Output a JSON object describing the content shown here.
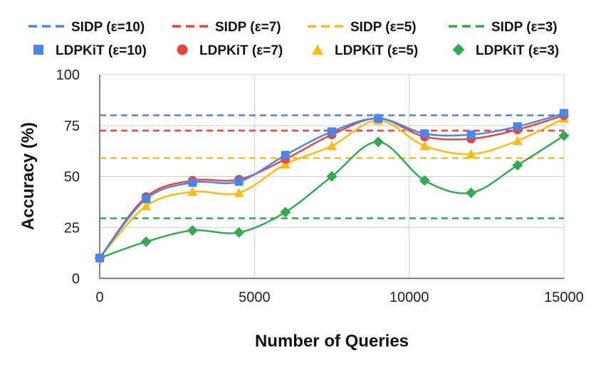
{
  "chart_data": {
    "type": "line",
    "title": "",
    "xlabel": "Number of Queries",
    "ylabel": "Accuracy (%)",
    "xlim": [
      0,
      15000
    ],
    "ylim": [
      0,
      100
    ],
    "x_ticks": [
      "0",
      "5000",
      "10000",
      "15000"
    ],
    "y_ticks": [
      "0",
      "25",
      "50",
      "75",
      "100"
    ],
    "grid": true,
    "legend_position": "top",
    "x": [
      0,
      1500,
      3000,
      4500,
      6000,
      7500,
      9000,
      10500,
      12000,
      13500,
      15000
    ],
    "baselines": [
      {
        "name": "SIDP (ε=10)",
        "value": 80,
        "color": "#4a86e8"
      },
      {
        "name": "SIDP (ε=7)",
        "value": 72.5,
        "color": "#e8453c"
      },
      {
        "name": "SIDP (ε=5)",
        "value": 59,
        "color": "#f9bc15"
      },
      {
        "name": "SIDP (ε=3)",
        "value": 29.5,
        "color": "#34a853"
      }
    ],
    "series": [
      {
        "name": "LDPKiT (ε=10)",
        "marker": "square",
        "color": "#4a86e8",
        "values": [
          10,
          39,
          47,
          47.5,
          60.5,
          72,
          78.5,
          71,
          70.5,
          74.5,
          81
        ]
      },
      {
        "name": "LDPKiT (ε=7)",
        "marker": "circle",
        "color": "#e8453c",
        "values": [
          10,
          40,
          48,
          48.5,
          58.5,
          70.5,
          78.5,
          69.5,
          68.5,
          73,
          80
        ]
      },
      {
        "name": "LDPKiT (ε=5)",
        "marker": "triangle",
        "color": "#f9bc15",
        "values": [
          10,
          35.5,
          42.5,
          42,
          56,
          65,
          77.5,
          65,
          61,
          67.5,
          78.5
        ]
      },
      {
        "name": "LDPKiT (ε=3)",
        "marker": "diamond",
        "color": "#34a853",
        "values": [
          10,
          18,
          23.5,
          22.5,
          32.5,
          50,
          67,
          48,
          42,
          55.5,
          70
        ]
      }
    ]
  }
}
